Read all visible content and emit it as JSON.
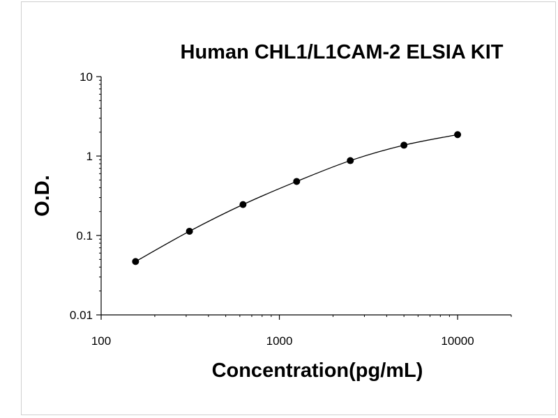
{
  "chart_data": {
    "type": "scatter",
    "title": "Human CHL1/L1CAM-2 ELSIA KIT",
    "xlabel": "Concentration(pg/mL)",
    "ylabel": "O.D.",
    "x_scale": "log",
    "y_scale": "log",
    "xlim": [
      100,
      20000
    ],
    "ylim": [
      0.01,
      10
    ],
    "x_ticks": [
      {
        "value": 100,
        "label": "100"
      },
      {
        "value": 1000,
        "label": "1000"
      },
      {
        "value": 10000,
        "label": "10000"
      }
    ],
    "y_ticks": [
      {
        "value": 0.01,
        "label": "0.01"
      },
      {
        "value": 0.1,
        "label": "0.1"
      },
      {
        "value": 1,
        "label": "1"
      },
      {
        "value": 10,
        "label": "10"
      }
    ],
    "grid": false,
    "series": [
      {
        "x": [
          156,
          313,
          625,
          1250,
          2500,
          5000,
          10000
        ],
        "y": [
          0.047,
          0.113,
          0.245,
          0.479,
          0.876,
          1.37,
          1.86
        ],
        "marker_color": "#000000",
        "fit_curve": true
      }
    ]
  }
}
